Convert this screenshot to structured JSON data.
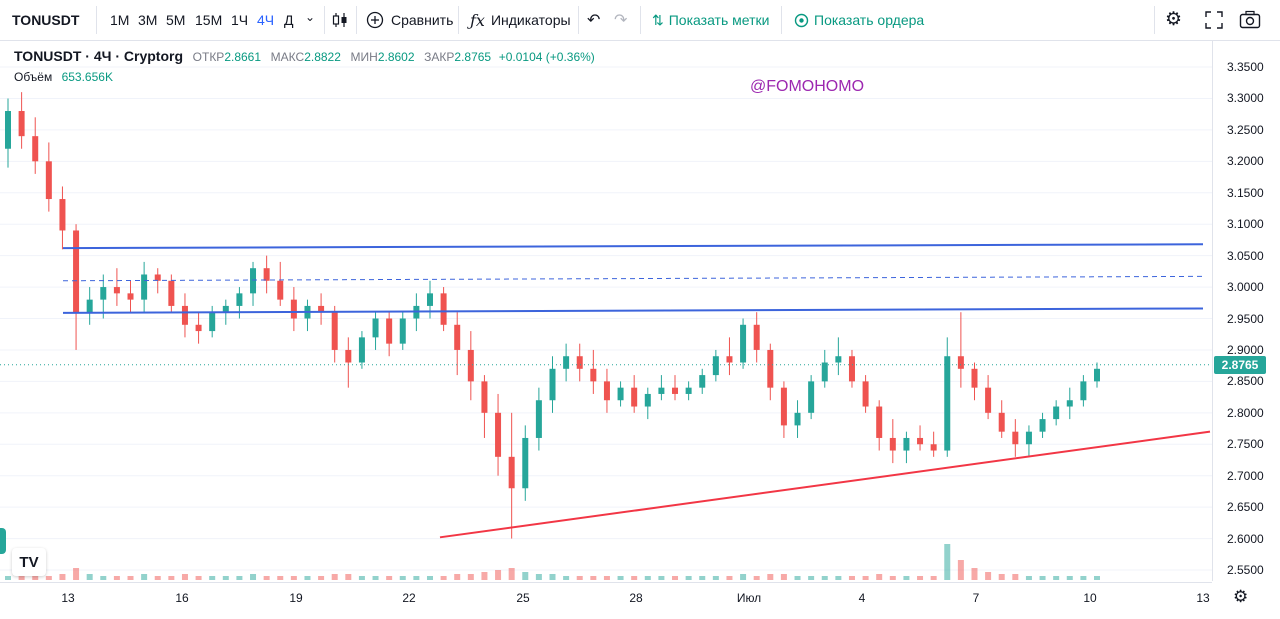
{
  "toolbar": {
    "symbol": "TONUSDT",
    "intervals": [
      "1М",
      "3М",
      "5М",
      "15М",
      "1Ч",
      "4Ч",
      "Д"
    ],
    "compare_label": "Сравнить",
    "indicators_label": "Индикаторы",
    "show_marks_label": "Показать метки",
    "show_orders_label": "Показать ордера"
  },
  "legend": {
    "symbol": "TONUSDT · 4Ч · Cryptorg",
    "open_label": "ОТКР",
    "open": "2.8661",
    "high_label": "МАКС",
    "high": "2.8822",
    "low_label": "МИН",
    "low": "2.8602",
    "close_label": "ЗАКР",
    "close": "2.8765",
    "change": "+0.0104 (+0.36%)",
    "volume_label": "Объём",
    "volume": "653.656K"
  },
  "watermark": "@FOMOHOMO",
  "price_axis": [
    "3.3500",
    "3.3000",
    "3.2500",
    "3.2000",
    "3.1500",
    "3.1000",
    "3.0500",
    "3.0000",
    "2.9500",
    "2.9000",
    "2.8500",
    "2.8000",
    "2.7500",
    "2.7000",
    "2.6500",
    "2.6000",
    "2.5500"
  ],
  "current_price": "2.8765",
  "time_axis": [
    "13",
    "16",
    "19",
    "22",
    "25",
    "28",
    "Июл",
    "4",
    "7",
    "10",
    "13"
  ],
  "colors": {
    "up": "#26a69a",
    "down": "#ef5350",
    "accent": "#2962ff",
    "support": "#f23645",
    "resistance": "#3c64dc",
    "watermark": "#9c27b0"
  },
  "chart_data": {
    "type": "candlestick",
    "ylim": [
      2.53,
      3.37
    ],
    "candles": [
      [
        3.22,
        3.3,
        3.19,
        3.28
      ],
      [
        3.28,
        3.31,
        3.22,
        3.24
      ],
      [
        3.24,
        3.27,
        3.18,
        3.2
      ],
      [
        3.2,
        3.23,
        3.12,
        3.14
      ],
      [
        3.14,
        3.16,
        3.06,
        3.09
      ],
      [
        3.09,
        3.1,
        2.9,
        2.96
      ],
      [
        2.96,
        3.0,
        2.94,
        2.98
      ],
      [
        2.98,
        3.02,
        2.95,
        3.0
      ],
      [
        3.0,
        3.03,
        2.97,
        2.99
      ],
      [
        2.99,
        3.01,
        2.96,
        2.98
      ],
      [
        2.98,
        3.04,
        2.96,
        3.02
      ],
      [
        3.02,
        3.03,
        2.99,
        3.01
      ],
      [
        3.01,
        3.02,
        2.96,
        2.97
      ],
      [
        2.97,
        2.99,
        2.92,
        2.94
      ],
      [
        2.94,
        2.96,
        2.91,
        2.93
      ],
      [
        2.93,
        2.97,
        2.92,
        2.96
      ],
      [
        2.96,
        2.98,
        2.94,
        2.97
      ],
      [
        2.97,
        3.0,
        2.95,
        2.99
      ],
      [
        2.99,
        3.04,
        2.97,
        3.03
      ],
      [
        3.03,
        3.05,
        2.99,
        3.01
      ],
      [
        3.01,
        3.04,
        2.97,
        2.98
      ],
      [
        2.98,
        3.0,
        2.93,
        2.95
      ],
      [
        2.95,
        2.98,
        2.93,
        2.97
      ],
      [
        2.97,
        2.99,
        2.94,
        2.96
      ],
      [
        2.96,
        2.97,
        2.88,
        2.9
      ],
      [
        2.9,
        2.92,
        2.84,
        2.88
      ],
      [
        2.88,
        2.93,
        2.87,
        2.92
      ],
      [
        2.92,
        2.96,
        2.9,
        2.95
      ],
      [
        2.95,
        2.96,
        2.89,
        2.91
      ],
      [
        2.91,
        2.96,
        2.9,
        2.95
      ],
      [
        2.95,
        2.99,
        2.93,
        2.97
      ],
      [
        2.97,
        3.01,
        2.95,
        2.99
      ],
      [
        2.99,
        3.0,
        2.93,
        2.94
      ],
      [
        2.94,
        2.96,
        2.86,
        2.9
      ],
      [
        2.9,
        2.93,
        2.82,
        2.85
      ],
      [
        2.85,
        2.86,
        2.76,
        2.8
      ],
      [
        2.8,
        2.83,
        2.7,
        2.73
      ],
      [
        2.73,
        2.8,
        2.6,
        2.68
      ],
      [
        2.68,
        2.78,
        2.66,
        2.76
      ],
      [
        2.76,
        2.84,
        2.74,
        2.82
      ],
      [
        2.82,
        2.89,
        2.8,
        2.87
      ],
      [
        2.87,
        2.91,
        2.85,
        2.89
      ],
      [
        2.89,
        2.91,
        2.85,
        2.87
      ],
      [
        2.87,
        2.9,
        2.83,
        2.85
      ],
      [
        2.85,
        2.87,
        2.8,
        2.82
      ],
      [
        2.82,
        2.85,
        2.81,
        2.84
      ],
      [
        2.84,
        2.86,
        2.8,
        2.81
      ],
      [
        2.81,
        2.84,
        2.79,
        2.83
      ],
      [
        2.83,
        2.86,
        2.82,
        2.84
      ],
      [
        2.84,
        2.86,
        2.82,
        2.83
      ],
      [
        2.83,
        2.85,
        2.82,
        2.84
      ],
      [
        2.84,
        2.87,
        2.83,
        2.86
      ],
      [
        2.86,
        2.9,
        2.85,
        2.89
      ],
      [
        2.89,
        2.92,
        2.86,
        2.88
      ],
      [
        2.88,
        2.95,
        2.87,
        2.94
      ],
      [
        2.94,
        2.96,
        2.88,
        2.9
      ],
      [
        2.9,
        2.91,
        2.82,
        2.84
      ],
      [
        2.84,
        2.85,
        2.76,
        2.78
      ],
      [
        2.78,
        2.82,
        2.76,
        2.8
      ],
      [
        2.8,
        2.86,
        2.79,
        2.85
      ],
      [
        2.85,
        2.9,
        2.84,
        2.88
      ],
      [
        2.88,
        2.92,
        2.86,
        2.89
      ],
      [
        2.89,
        2.9,
        2.84,
        2.85
      ],
      [
        2.85,
        2.86,
        2.8,
        2.81
      ],
      [
        2.81,
        2.82,
        2.74,
        2.76
      ],
      [
        2.76,
        2.79,
        2.72,
        2.74
      ],
      [
        2.74,
        2.77,
        2.72,
        2.76
      ],
      [
        2.76,
        2.78,
        2.74,
        2.75
      ],
      [
        2.75,
        2.77,
        2.73,
        2.74
      ],
      [
        2.74,
        2.92,
        2.73,
        2.89
      ],
      [
        2.89,
        2.96,
        2.84,
        2.87
      ],
      [
        2.87,
        2.88,
        2.82,
        2.84
      ],
      [
        2.84,
        2.86,
        2.79,
        2.8
      ],
      [
        2.8,
        2.82,
        2.76,
        2.77
      ],
      [
        2.77,
        2.79,
        2.73,
        2.75
      ],
      [
        2.75,
        2.78,
        2.73,
        2.77
      ],
      [
        2.77,
        2.8,
        2.76,
        2.79
      ],
      [
        2.79,
        2.82,
        2.78,
        2.81
      ],
      [
        2.81,
        2.84,
        2.79,
        2.82
      ],
      [
        2.82,
        2.86,
        2.81,
        2.85
      ],
      [
        2.85,
        2.88,
        2.84,
        2.87
      ]
    ],
    "volumes": [
      0.2,
      0.3,
      0.2,
      0.2,
      0.3,
      0.6,
      0.3,
      0.2,
      0.2,
      0.2,
      0.3,
      0.2,
      0.2,
      0.3,
      0.2,
      0.2,
      0.2,
      0.2,
      0.3,
      0.2,
      0.2,
      0.2,
      0.2,
      0.2,
      0.3,
      0.3,
      0.2,
      0.2,
      0.2,
      0.2,
      0.2,
      0.2,
      0.2,
      0.3,
      0.3,
      0.4,
      0.5,
      0.6,
      0.4,
      0.3,
      0.3,
      0.2,
      0.2,
      0.2,
      0.2,
      0.2,
      0.2,
      0.2,
      0.2,
      0.2,
      0.2,
      0.2,
      0.2,
      0.2,
      0.3,
      0.2,
      0.3,
      0.3,
      0.2,
      0.2,
      0.2,
      0.2,
      0.2,
      0.2,
      0.3,
      0.2,
      0.2,
      0.2,
      0.2,
      1.8,
      1.0,
      0.6,
      0.4,
      0.3,
      0.3,
      0.2,
      0.2,
      0.2,
      0.2,
      0.2,
      0.2
    ],
    "trendlines": [
      {
        "from": [
          0,
          3.062
        ],
        "to": [
          1213,
          3.068
        ]
      },
      {
        "from": [
          0,
          2.959
        ],
        "to": [
          1213,
          2.966
        ],
        "dashed_mid": true
      },
      {
        "from": [
          12,
          2.602
        ],
        "to": [
          1226,
          2.77
        ]
      }
    ]
  }
}
